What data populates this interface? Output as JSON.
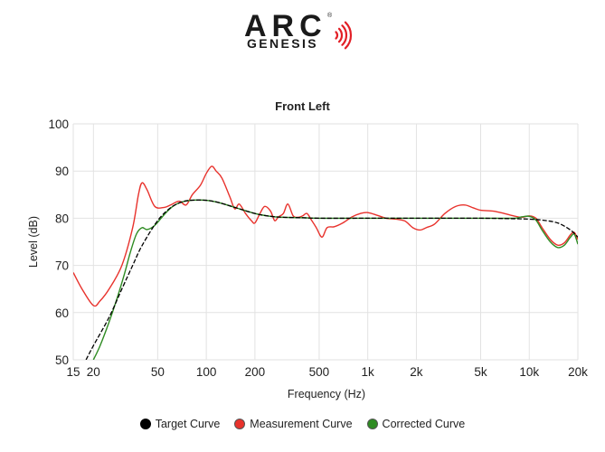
{
  "logo": {
    "brand": "ARC",
    "product": "GENESIS",
    "registered": "®",
    "wave_color": "#e21f26"
  },
  "chart_data": {
    "type": "line",
    "title": "Front Left",
    "xlabel": "Frequency (Hz)",
    "ylabel": "Level (dB)",
    "x_scale": "log",
    "xlim": [
      15,
      20000
    ],
    "ylim": [
      50,
      100
    ],
    "grid": true,
    "legend_position": "bottom",
    "x_ticks": [
      {
        "value": 15,
        "label": "15"
      },
      {
        "value": 20,
        "label": "20"
      },
      {
        "value": 50,
        "label": "50"
      },
      {
        "value": 100,
        "label": "100"
      },
      {
        "value": 200,
        "label": "200"
      },
      {
        "value": 500,
        "label": "500"
      },
      {
        "value": 1000,
        "label": "1k"
      },
      {
        "value": 2000,
        "label": "2k"
      },
      {
        "value": 5000,
        "label": "5k"
      },
      {
        "value": 10000,
        "label": "10k"
      },
      {
        "value": 20000,
        "label": "20k"
      }
    ],
    "y_ticks": [
      50,
      60,
      70,
      80,
      90,
      100
    ],
    "series": [
      {
        "name": "Target Curve",
        "color": "#000000",
        "points": [
          [
            18,
            50
          ],
          [
            20,
            53
          ],
          [
            25,
            59
          ],
          [
            30,
            65
          ],
          [
            35,
            70
          ],
          [
            40,
            74.2
          ],
          [
            50,
            79.5
          ],
          [
            60,
            82.2
          ],
          [
            70,
            83.4
          ],
          [
            80,
            83.8
          ],
          [
            100,
            83.8
          ],
          [
            120,
            83.3
          ],
          [
            150,
            82.3
          ],
          [
            200,
            81
          ],
          [
            250,
            80.4
          ],
          [
            300,
            80.2
          ],
          [
            400,
            80.1
          ],
          [
            500,
            80
          ],
          [
            1000,
            80
          ],
          [
            2000,
            80
          ],
          [
            5000,
            80
          ],
          [
            8000,
            79.9
          ],
          [
            10000,
            79.8
          ],
          [
            12000,
            79.6
          ],
          [
            15000,
            79
          ],
          [
            18000,
            77.5
          ],
          [
            20000,
            76
          ]
        ]
      },
      {
        "name": "Measurement Curve",
        "color": "#e8322c",
        "points": [
          [
            15,
            68.5
          ],
          [
            17,
            65
          ],
          [
            20,
            61.5
          ],
          [
            22,
            62.5
          ],
          [
            25,
            65
          ],
          [
            30,
            70
          ],
          [
            35,
            78
          ],
          [
            38,
            85
          ],
          [
            40,
            87.5
          ],
          [
            43,
            86
          ],
          [
            48,
            82.5
          ],
          [
            55,
            82.3
          ],
          [
            60,
            82.8
          ],
          [
            68,
            83.6
          ],
          [
            75,
            82.8
          ],
          [
            82,
            85
          ],
          [
            92,
            87
          ],
          [
            100,
            89.5
          ],
          [
            108,
            91
          ],
          [
            115,
            90
          ],
          [
            125,
            88.5
          ],
          [
            140,
            84.5
          ],
          [
            150,
            82
          ],
          [
            160,
            83
          ],
          [
            175,
            81
          ],
          [
            190,
            79.5
          ],
          [
            200,
            79
          ],
          [
            215,
            81
          ],
          [
            230,
            82.5
          ],
          [
            250,
            81.5
          ],
          [
            265,
            79.5
          ],
          [
            280,
            80.3
          ],
          [
            300,
            81
          ],
          [
            320,
            83
          ],
          [
            345,
            80.5
          ],
          [
            370,
            80.2
          ],
          [
            395,
            80.5
          ],
          [
            420,
            81
          ],
          [
            450,
            79.5
          ],
          [
            480,
            78
          ],
          [
            520,
            76
          ],
          [
            560,
            78
          ],
          [
            620,
            78.2
          ],
          [
            700,
            79
          ],
          [
            800,
            80.3
          ],
          [
            900,
            81
          ],
          [
            1000,
            81.2
          ],
          [
            1150,
            80.6
          ],
          [
            1300,
            80
          ],
          [
            1500,
            79.8
          ],
          [
            1700,
            79.4
          ],
          [
            1900,
            78
          ],
          [
            2100,
            77.5
          ],
          [
            2300,
            78
          ],
          [
            2600,
            78.8
          ],
          [
            3000,
            81
          ],
          [
            3500,
            82.5
          ],
          [
            4000,
            82.8
          ],
          [
            4500,
            82.2
          ],
          [
            5000,
            81.7
          ],
          [
            6000,
            81.5
          ],
          [
            7000,
            81
          ],
          [
            8000,
            80.5
          ],
          [
            9000,
            80.2
          ],
          [
            10000,
            80.5
          ],
          [
            11000,
            80
          ],
          [
            12000,
            78
          ],
          [
            13500,
            75.5
          ],
          [
            15000,
            74.3
          ],
          [
            16500,
            74.8
          ],
          [
            18000,
            76.5
          ],
          [
            19000,
            77
          ],
          [
            20000,
            75.5
          ]
        ]
      },
      {
        "name": "Corrected Curve",
        "color": "#2e8b22",
        "points": [
          [
            20,
            50
          ],
          [
            22,
            53
          ],
          [
            25,
            58
          ],
          [
            28,
            63
          ],
          [
            31,
            68
          ],
          [
            34,
            73
          ],
          [
            37,
            76.7
          ],
          [
            40,
            78
          ],
          [
            43,
            77.6
          ],
          [
            48,
            78.5
          ],
          [
            55,
            80.8
          ],
          [
            62,
            82.5
          ],
          [
            70,
            83.4
          ],
          [
            80,
            83.8
          ],
          [
            100,
            83.8
          ],
          [
            120,
            83.3
          ],
          [
            150,
            82.3
          ],
          [
            200,
            81
          ],
          [
            250,
            80.4
          ],
          [
            300,
            80.2
          ],
          [
            400,
            80.1
          ],
          [
            500,
            80
          ],
          [
            1000,
            80
          ],
          [
            2000,
            80
          ],
          [
            5000,
            80
          ],
          [
            8000,
            80
          ],
          [
            9000,
            80.3
          ],
          [
            10000,
            80.4
          ],
          [
            11000,
            79.6
          ],
          [
            12000,
            77.5
          ],
          [
            13500,
            75
          ],
          [
            15000,
            73.8
          ],
          [
            16500,
            74.3
          ],
          [
            18000,
            76
          ],
          [
            19000,
            76.6
          ],
          [
            20000,
            74.5
          ]
        ]
      }
    ]
  }
}
